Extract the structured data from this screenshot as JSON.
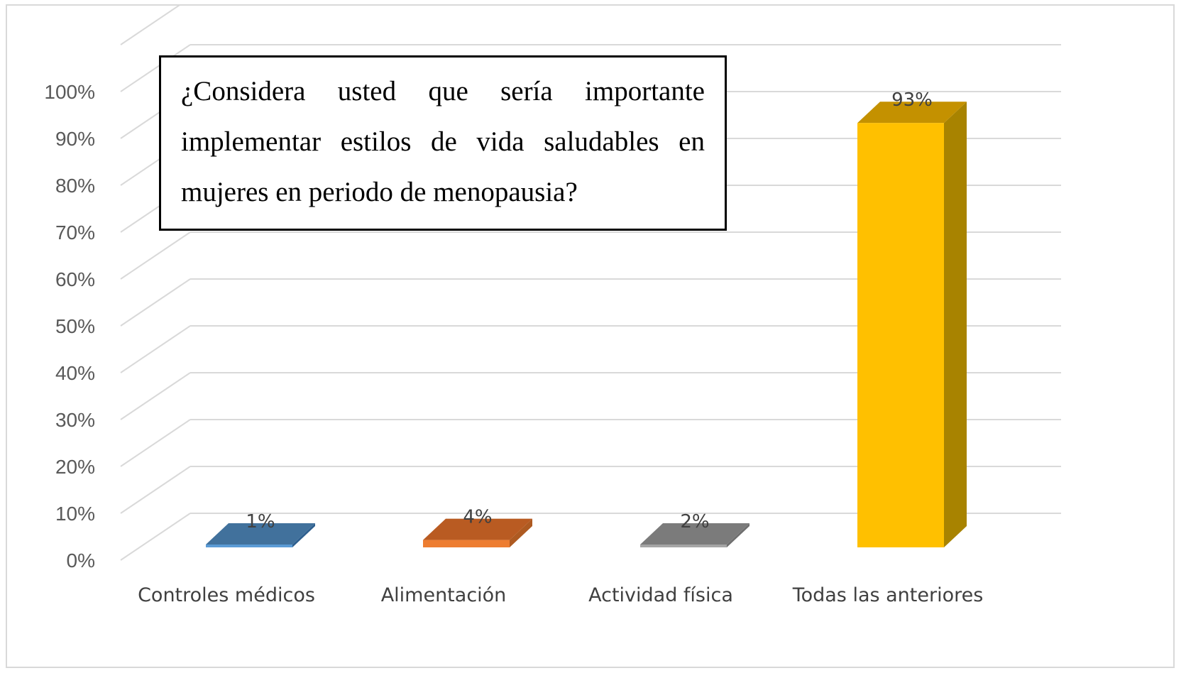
{
  "chart_data": {
    "type": "bar",
    "title": "¿Considera usted que sería importante implementar estilos de vida saludables en mujeres en periodo de menopausia?",
    "categories": [
      "Controles médicos",
      "Alimentación",
      "Actividad física",
      "Todas las anteriores"
    ],
    "values": [
      1,
      4,
      2,
      93
    ],
    "value_labels": [
      "1%",
      "4%",
      "2%",
      "93%"
    ],
    "ylim": [
      0,
      100
    ],
    "yticks": [
      0,
      10,
      20,
      30,
      40,
      50,
      60,
      70,
      80,
      90,
      100
    ],
    "ytick_labels": [
      "0%",
      "10%",
      "20%",
      "30%",
      "40%",
      "50%",
      "60%",
      "70%",
      "80%",
      "90%",
      "100%"
    ],
    "grid": true,
    "style": "3d-column",
    "colors": [
      {
        "front": "#5b9bd5",
        "top": "#41719c",
        "side": "#2e5f8e"
      },
      {
        "front": "#ed7d31",
        "top": "#b95b22",
        "side": "#ae5a21"
      },
      {
        "front": "#a5a5a5",
        "top": "#7b7b7b",
        "side": "#6f6f6f"
      },
      {
        "front": "#ffc000",
        "top": "#c49100",
        "side": "#a88300"
      }
    ],
    "grid_color": "#d9d9d9",
    "tick_color": "#595959"
  }
}
